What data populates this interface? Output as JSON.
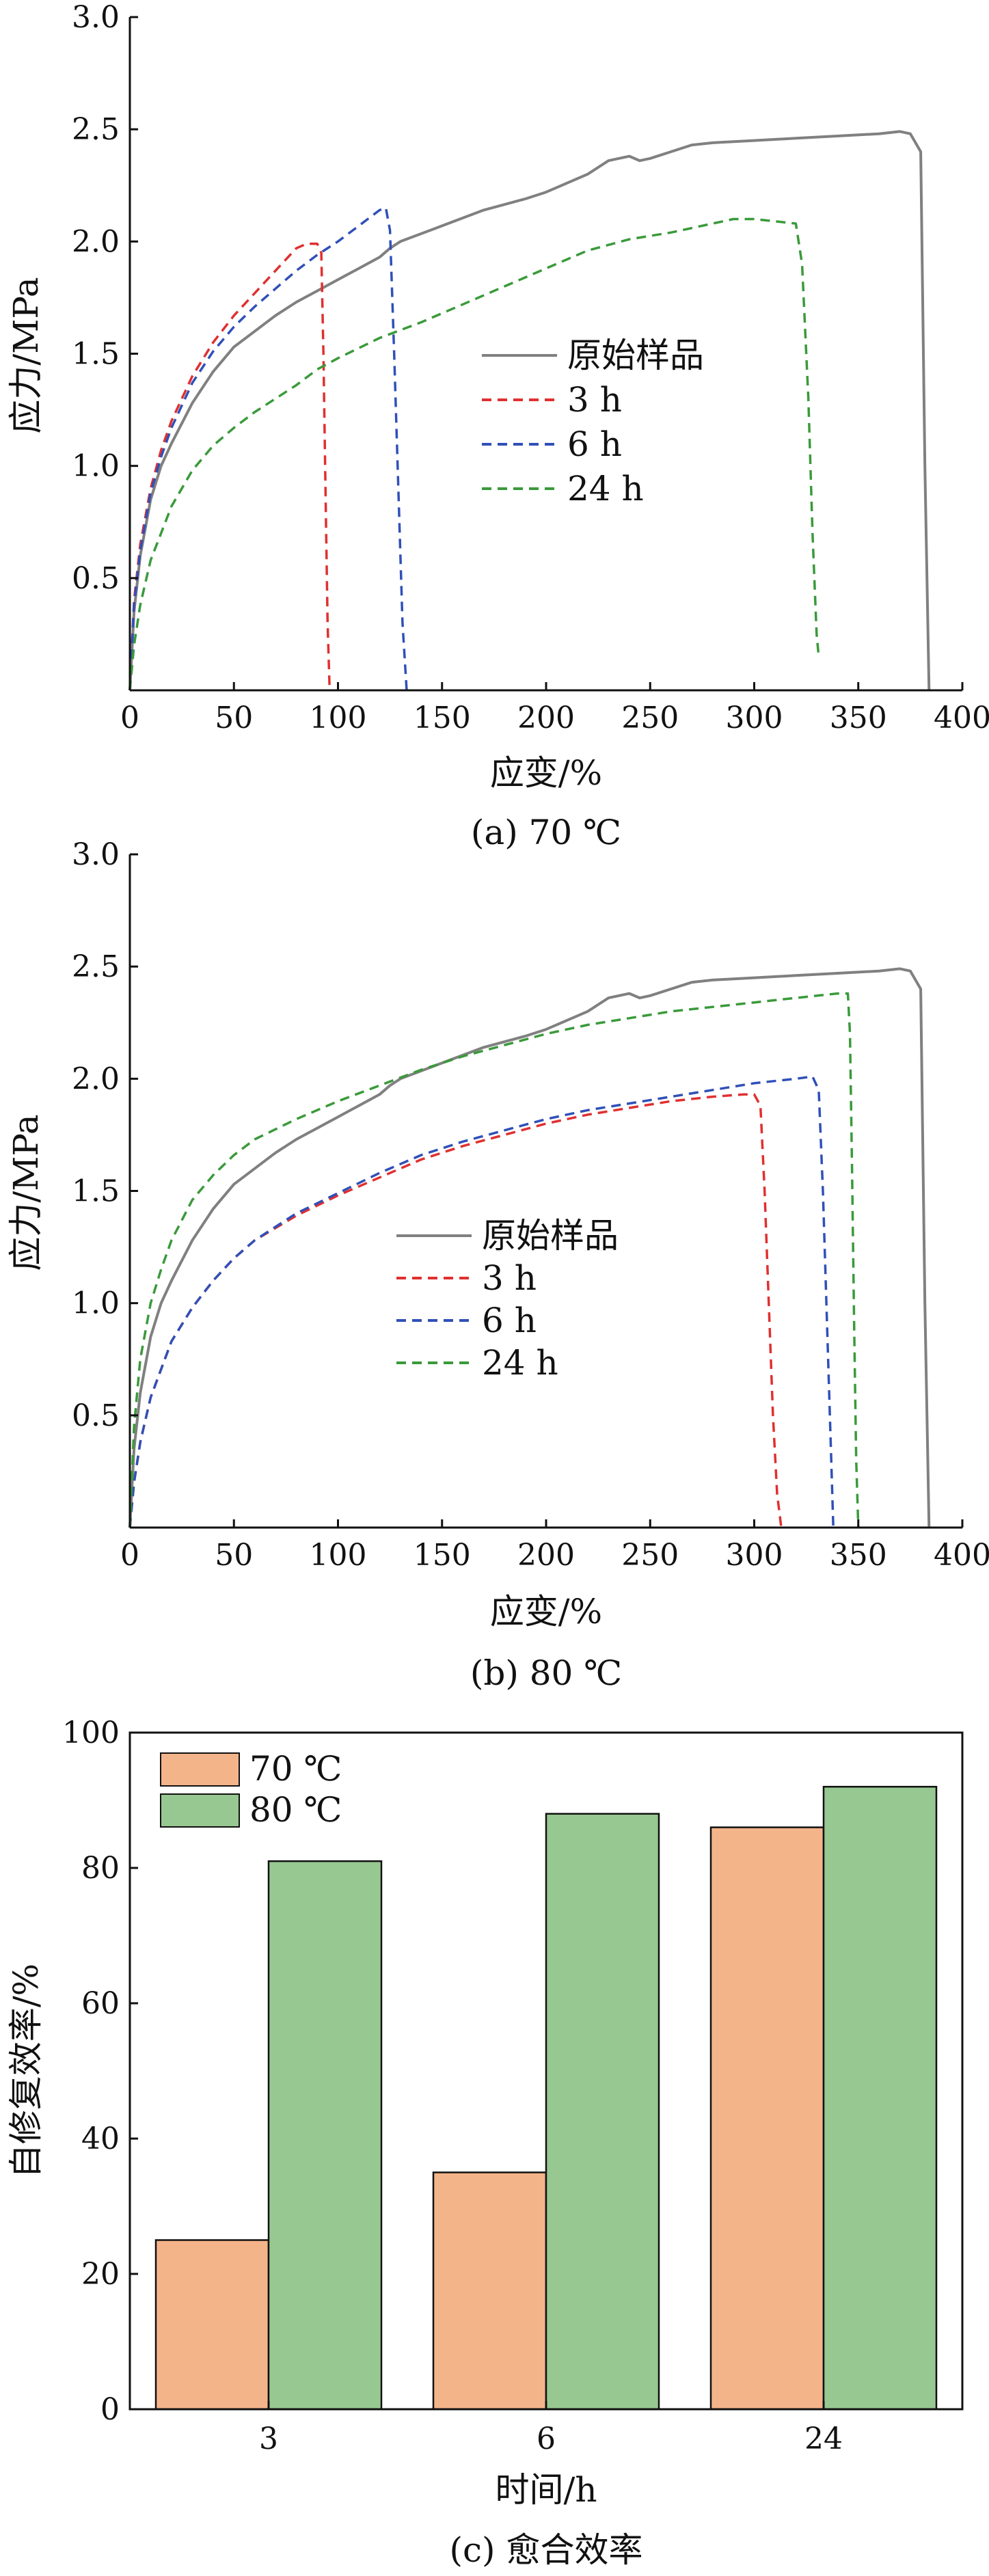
{
  "chart_data": [
    {
      "type": "line",
      "caption": "(a) 70 ℃",
      "xlabel": "应变/%",
      "ylabel": "应力/MPa",
      "xlim": [
        0,
        400
      ],
      "ylim": [
        0,
        3.0
      ],
      "xticks": [
        "0",
        "50",
        "100",
        "150",
        "200",
        "250",
        "300",
        "350",
        "400"
      ],
      "yticks": [
        "0.5",
        "1.0",
        "1.5",
        "2.0",
        "2.5",
        "3.0"
      ],
      "grid": false,
      "legend_position": "center",
      "series": [
        {
          "name": "原始样品",
          "color": "#808080",
          "dash": "solid",
          "x": [
            0,
            2,
            5,
            10,
            15,
            20,
            30,
            40,
            50,
            60,
            70,
            80,
            90,
            100,
            110,
            120,
            125,
            130,
            150,
            170,
            190,
            200,
            220,
            230,
            240,
            245,
            250,
            260,
            270,
            280,
            300,
            320,
            340,
            360,
            370,
            375,
            380,
            382,
            384
          ],
          "y": [
            0,
            0.35,
            0.6,
            0.85,
            1.0,
            1.1,
            1.28,
            1.42,
            1.53,
            1.6,
            1.67,
            1.73,
            1.78,
            1.83,
            1.88,
            1.93,
            1.97,
            2.0,
            2.07,
            2.14,
            2.19,
            2.22,
            2.3,
            2.36,
            2.38,
            2.36,
            2.37,
            2.4,
            2.43,
            2.44,
            2.45,
            2.46,
            2.47,
            2.48,
            2.49,
            2.48,
            2.4,
            1.0,
            0
          ]
        },
        {
          "name": "3 h",
          "color": "#e03030",
          "dash": "dashed",
          "x": [
            0,
            2,
            5,
            10,
            15,
            20,
            30,
            40,
            50,
            60,
            70,
            80,
            85,
            90,
            92,
            93,
            94,
            95,
            96
          ],
          "y": [
            0,
            0.4,
            0.65,
            0.9,
            1.07,
            1.2,
            1.4,
            1.55,
            1.67,
            1.77,
            1.87,
            1.97,
            1.99,
            1.99,
            1.95,
            1.5,
            0.9,
            0.3,
            0
          ]
        },
        {
          "name": "6 h",
          "color": "#3050b8",
          "dash": "dashed",
          "x": [
            0,
            2,
            5,
            10,
            15,
            20,
            30,
            40,
            50,
            60,
            70,
            80,
            90,
            100,
            110,
            120,
            123,
            125,
            127,
            129,
            131,
            133
          ],
          "y": [
            0,
            0.38,
            0.62,
            0.88,
            1.04,
            1.17,
            1.37,
            1.51,
            1.62,
            1.71,
            1.79,
            1.87,
            1.94,
            2.0,
            2.07,
            2.14,
            2.15,
            2.05,
            1.5,
            0.9,
            0.3,
            0
          ]
        },
        {
          "name": "24 h",
          "color": "#3a9a3a",
          "dash": "dashed",
          "x": [
            0,
            2,
            5,
            10,
            20,
            30,
            40,
            50,
            60,
            70,
            80,
            90,
            100,
            120,
            140,
            160,
            180,
            200,
            220,
            240,
            260,
            280,
            290,
            300,
            310,
            320,
            323,
            326,
            328,
            330,
            331
          ],
          "y": [
            0,
            0.2,
            0.38,
            0.58,
            0.82,
            0.98,
            1.09,
            1.17,
            1.24,
            1.3,
            1.36,
            1.43,
            1.48,
            1.57,
            1.64,
            1.72,
            1.8,
            1.88,
            1.96,
            2.01,
            2.04,
            2.08,
            2.1,
            2.1,
            2.09,
            2.08,
            1.9,
            1.3,
            0.7,
            0.25,
            0.15
          ]
        }
      ]
    },
    {
      "type": "line",
      "caption": "(b) 80 ℃",
      "xlabel": "应变/%",
      "ylabel": "应力/MPa",
      "xlim": [
        0,
        400
      ],
      "ylim": [
        0,
        3.0
      ],
      "xticks": [
        "0",
        "50",
        "100",
        "150",
        "200",
        "250",
        "300",
        "350",
        "400"
      ],
      "yticks": [
        "0.5",
        "1.0",
        "1.5",
        "2.0",
        "2.5",
        "3.0"
      ],
      "grid": false,
      "legend_position": "center-left",
      "series": [
        {
          "name": "原始样品",
          "color": "#808080",
          "dash": "solid",
          "x": [
            0,
            2,
            5,
            10,
            15,
            20,
            30,
            40,
            50,
            60,
            70,
            80,
            90,
            100,
            110,
            120,
            125,
            130,
            150,
            170,
            190,
            200,
            220,
            230,
            240,
            245,
            250,
            260,
            270,
            280,
            300,
            320,
            340,
            360,
            370,
            375,
            380,
            382,
            384
          ],
          "y": [
            0,
            0.35,
            0.6,
            0.85,
            1.0,
            1.1,
            1.28,
            1.42,
            1.53,
            1.6,
            1.67,
            1.73,
            1.78,
            1.83,
            1.88,
            1.93,
            1.97,
            2.0,
            2.07,
            2.14,
            2.19,
            2.22,
            2.3,
            2.36,
            2.38,
            2.36,
            2.37,
            2.4,
            2.43,
            2.44,
            2.45,
            2.46,
            2.47,
            2.48,
            2.49,
            2.48,
            2.4,
            1.0,
            0
          ]
        },
        {
          "name": "3 h",
          "color": "#e03030",
          "dash": "dashed",
          "x": [
            0,
            2,
            5,
            10,
            20,
            30,
            40,
            50,
            60,
            80,
            100,
            120,
            140,
            160,
            180,
            200,
            220,
            240,
            260,
            280,
            295,
            300,
            303,
            305,
            307,
            309,
            311,
            313
          ],
          "y": [
            0,
            0.2,
            0.38,
            0.58,
            0.83,
            0.98,
            1.1,
            1.2,
            1.28,
            1.39,
            1.48,
            1.56,
            1.64,
            1.7,
            1.75,
            1.8,
            1.84,
            1.87,
            1.9,
            1.92,
            1.93,
            1.93,
            1.88,
            1.5,
            1.0,
            0.5,
            0.15,
            0
          ]
        },
        {
          "name": "6 h",
          "color": "#3050b8",
          "dash": "dashed",
          "x": [
            0,
            2,
            5,
            10,
            20,
            30,
            40,
            50,
            60,
            80,
            100,
            120,
            140,
            160,
            180,
            200,
            220,
            240,
            260,
            280,
            300,
            320,
            328,
            331,
            333,
            335,
            337,
            338
          ],
          "y": [
            0,
            0.2,
            0.38,
            0.58,
            0.83,
            0.98,
            1.1,
            1.2,
            1.28,
            1.4,
            1.49,
            1.58,
            1.66,
            1.72,
            1.77,
            1.82,
            1.86,
            1.89,
            1.92,
            1.95,
            1.98,
            2.0,
            2.01,
            1.95,
            1.5,
            0.9,
            0.3,
            0
          ]
        },
        {
          "name": "24 h",
          "color": "#3a9a3a",
          "dash": "dashed",
          "x": [
            0,
            2,
            5,
            10,
            15,
            20,
            30,
            40,
            50,
            60,
            80,
            100,
            120,
            140,
            160,
            180,
            200,
            220,
            240,
            260,
            280,
            300,
            320,
            340,
            345,
            346,
            347,
            348,
            349,
            350
          ],
          "y": [
            0,
            0.45,
            0.75,
            1.0,
            1.15,
            1.28,
            1.46,
            1.57,
            1.66,
            1.73,
            1.82,
            1.9,
            1.97,
            2.04,
            2.1,
            2.15,
            2.2,
            2.24,
            2.27,
            2.3,
            2.32,
            2.34,
            2.36,
            2.38,
            2.38,
            2.2,
            1.6,
            0.9,
            0.3,
            0
          ]
        }
      ]
    },
    {
      "type": "bar",
      "caption": "(c) 愈合效率",
      "xlabel": "时间/h",
      "ylabel": "自修复效率/%",
      "categories": [
        "3",
        "6",
        "24"
      ],
      "ylim": [
        0,
        100
      ],
      "yticks": [
        "0",
        "20",
        "40",
        "60",
        "80",
        "100"
      ],
      "grid": false,
      "legend_position": "top-left",
      "series": [
        {
          "name": "70 ℃",
          "color": "#f4b48a",
          "values": [
            25,
            35,
            86
          ]
        },
        {
          "name": "80 ℃",
          "color": "#98c891",
          "values": [
            81,
            88,
            92
          ]
        }
      ]
    }
  ]
}
